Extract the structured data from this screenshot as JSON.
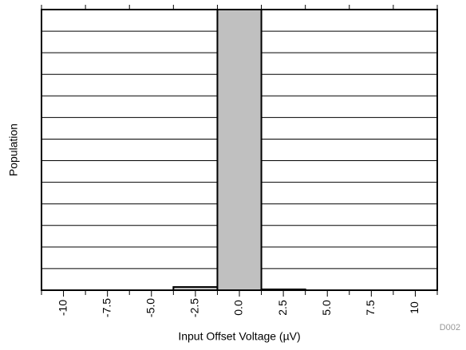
{
  "chart_data": {
    "type": "histogram",
    "xlabel": "Input Offset Voltage (µV)",
    "ylabel": "Population",
    "annotation": "D002",
    "bins": [
      -11.25,
      -8.75,
      -6.25,
      -3.75,
      -1.25,
      1.25,
      3.75,
      6.25,
      8.75,
      11.25
    ],
    "values": [
      0,
      0,
      0,
      0.15,
      13,
      0.04,
      0,
      0,
      0
    ],
    "color": "#c0c0c0",
    "xlim": [
      -11.25,
      11.25
    ],
    "xticks": [
      -10,
      -7.5,
      {
        "value": -5,
        "label": "-5.0"
      },
      -2.5,
      {
        "value": 0,
        "label": "0.0"
      },
      2.5,
      {
        "value": 5,
        "label": "5.0"
      },
      7.5,
      10
    ],
    "ylim": [
      0,
      13
    ],
    "yticks": [
      1,
      2,
      3,
      4,
      5,
      6,
      7,
      8,
      9,
      10,
      11,
      12
    ],
    "grid": true
  }
}
